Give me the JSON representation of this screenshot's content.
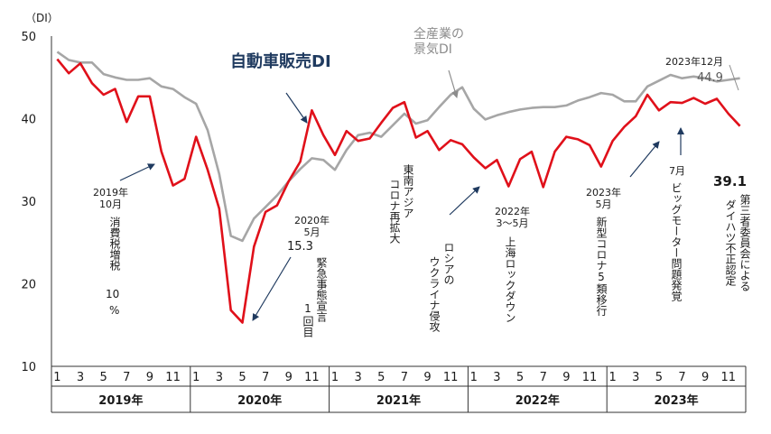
{
  "chart_data": {
    "type": "line",
    "ylabel": "（DI）",
    "ylim": [
      10,
      50
    ],
    "yticks": [
      10,
      20,
      30,
      40,
      50
    ],
    "x_month_ticks": [
      "1",
      "3",
      "5",
      "7",
      "9",
      "11"
    ],
    "years": [
      "2019年",
      "2020年",
      "2021年",
      "2022年",
      "2023年"
    ],
    "x_start": "2019-01",
    "series": [
      {
        "name": "自動車販売DI",
        "color": "#e0101a",
        "values": [
          47.2,
          45.5,
          46.7,
          44.3,
          42.9,
          43.6,
          39.6,
          42.7,
          42.7,
          36.0,
          31.9,
          32.7,
          37.8,
          33.8,
          29.1,
          16.8,
          15.3,
          24.5,
          28.7,
          29.5,
          32.4,
          34.8,
          41.0,
          38.0,
          35.6,
          38.5,
          37.3,
          37.6,
          39.5,
          41.3,
          42.0,
          37.7,
          38.5,
          36.2,
          37.4,
          36.9,
          35.3,
          34.0,
          35.0,
          31.8,
          35.1,
          36.0,
          31.7,
          36.0,
          37.8,
          37.5,
          36.8,
          34.2,
          37.3,
          39.0,
          40.3,
          42.9,
          41.0,
          42.0,
          41.9,
          42.5,
          41.8,
          42.4,
          40.6,
          39.1
        ]
      },
      {
        "name": "全産業の景気DI",
        "color": "#a6a6a6",
        "values": [
          48.1,
          47.1,
          46.8,
          46.8,
          45.4,
          45.0,
          44.7,
          44.7,
          44.9,
          43.9,
          43.6,
          42.6,
          41.8,
          38.6,
          33.3,
          25.8,
          25.2,
          27.9,
          29.3,
          30.7,
          32.4,
          33.9,
          35.2,
          35.0,
          33.8,
          36.2,
          38.0,
          38.3,
          37.8,
          39.2,
          40.6,
          39.4,
          39.8,
          41.4,
          42.9,
          43.8,
          41.2,
          39.9,
          40.4,
          40.8,
          41.1,
          41.3,
          41.4,
          41.4,
          41.6,
          42.2,
          42.6,
          43.1,
          42.9,
          42.1,
          42.1,
          43.9,
          44.6,
          45.3,
          44.9,
          45.1,
          44.9,
          44.5,
          44.7,
          44.9
        ]
      }
    ]
  },
  "labels": {
    "auto_title": "自動車販売DI",
    "all_title_l1": "全産業の",
    "all_title_l2": "景気DI",
    "dec2023_label": "2023年12月",
    "val_449": "44.9",
    "val_391": "39.1",
    "oct2019_l1": "2019年",
    "oct2019_l2": "10月",
    "tax": "消費税増税",
    "tax_pct": "10",
    "tax_pctsign": "%",
    "may2020_l1": "2020年",
    "may2020_l2": "5月",
    "may2020_val": "15.3",
    "emergency": "緊急事態宣言",
    "emergency_n": "1",
    "emergency_tail": "回目",
    "asia_l1": "東南アジア",
    "asia_l2": "コロナ再拡大",
    "russia_l1": "ロシアの",
    "russia_l2": "ウクライナ侵攻",
    "mar2022_l1": "2022年",
    "mar2022_l2": "3～5月",
    "shanghai": "上海ロックダウン",
    "may2023_l1": "2023年",
    "may2023_l2": "5月",
    "corona5": "新型コロナ5類移行",
    "jul": "7月",
    "bigmotor": "ビッグモーター問題発覚",
    "daihatsu_l1": "第三者委員会による",
    "daihatsu_l2": "ダイハツ不正認定"
  }
}
